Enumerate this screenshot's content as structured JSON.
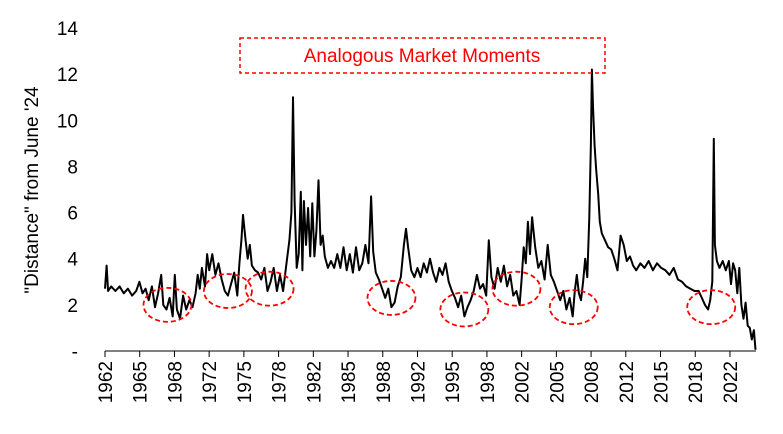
{
  "chart_data": {
    "type": "line",
    "title": "",
    "xlabel": "",
    "ylabel": "\"Distance\" from June '24",
    "ylim": [
      0,
      14
    ],
    "xlim": [
      1962.0,
      2024.5
    ],
    "y_ticks": [
      "-",
      "2",
      "4",
      "6",
      "8",
      "10",
      "12",
      "14"
    ],
    "x_ticks": [
      "1962",
      "1965",
      "1968",
      "1972",
      "1975",
      "1978",
      "1982",
      "1985",
      "1988",
      "1992",
      "1995",
      "1998",
      "2002",
      "2005",
      "2008",
      "2012",
      "2015",
      "2018",
      "2022"
    ],
    "grid": false,
    "line_color": "#000000",
    "annotation_color": "#ff0000",
    "annotation_box": {
      "text": "Analogous Market Moments"
    },
    "highlight_ellipses": [
      {
        "x": 1968.0,
        "y": 2.0
      },
      {
        "x": 1973.8,
        "y": 2.6
      },
      {
        "x": 1977.8,
        "y": 2.7
      },
      {
        "x": 1989.5,
        "y": 2.3
      },
      {
        "x": 1996.5,
        "y": 1.8
      },
      {
        "x": 2001.5,
        "y": 2.7
      },
      {
        "x": 2007.0,
        "y": 1.9
      },
      {
        "x": 2020.2,
        "y": 1.9
      }
    ],
    "series": [
      {
        "points": [
          [
            1962.0,
            2.7
          ],
          [
            1962.15,
            3.7
          ],
          [
            1962.3,
            2.6
          ],
          [
            1962.6,
            2.8
          ],
          [
            1963.0,
            2.6
          ],
          [
            1963.4,
            2.8
          ],
          [
            1963.8,
            2.5
          ],
          [
            1964.2,
            2.7
          ],
          [
            1964.6,
            2.4
          ],
          [
            1965.0,
            2.6
          ],
          [
            1965.3,
            3.0
          ],
          [
            1965.6,
            2.5
          ],
          [
            1965.9,
            2.7
          ],
          [
            1966.2,
            2.2
          ],
          [
            1966.5,
            2.8
          ],
          [
            1966.8,
            1.9
          ],
          [
            1967.1,
            2.5
          ],
          [
            1967.4,
            3.3
          ],
          [
            1967.6,
            2.0
          ],
          [
            1967.9,
            1.8
          ],
          [
            1968.2,
            2.3
          ],
          [
            1968.5,
            1.5
          ],
          [
            1968.7,
            3.3
          ],
          [
            1968.9,
            1.8
          ],
          [
            1969.2,
            1.4
          ],
          [
            1969.5,
            2.4
          ],
          [
            1969.8,
            1.8
          ],
          [
            1970.1,
            2.2
          ],
          [
            1970.4,
            1.9
          ],
          [
            1970.7,
            2.5
          ],
          [
            1970.9,
            3.3
          ],
          [
            1971.1,
            2.7
          ],
          [
            1971.3,
            3.6
          ],
          [
            1971.6,
            2.8
          ],
          [
            1971.8,
            4.2
          ],
          [
            1972.0,
            3.5
          ],
          [
            1972.3,
            4.2
          ],
          [
            1972.6,
            3.3
          ],
          [
            1972.9,
            3.8
          ],
          [
            1973.2,
            3.1
          ],
          [
            1973.5,
            2.6
          ],
          [
            1973.8,
            2.4
          ],
          [
            1974.1,
            2.9
          ],
          [
            1974.4,
            3.4
          ],
          [
            1974.7,
            2.4
          ],
          [
            1974.9,
            3.8
          ],
          [
            1975.1,
            4.8
          ],
          [
            1975.25,
            5.9
          ],
          [
            1975.5,
            4.8
          ],
          [
            1975.7,
            4.0
          ],
          [
            1975.9,
            4.6
          ],
          [
            1976.1,
            3.7
          ],
          [
            1976.4,
            3.5
          ],
          [
            1976.7,
            3.4
          ],
          [
            1977.0,
            3.1
          ],
          [
            1977.3,
            3.6
          ],
          [
            1977.6,
            2.6
          ],
          [
            1977.9,
            3.0
          ],
          [
            1978.2,
            3.6
          ],
          [
            1978.5,
            2.6
          ],
          [
            1978.8,
            3.3
          ],
          [
            1979.1,
            2.6
          ],
          [
            1979.4,
            3.7
          ],
          [
            1979.7,
            4.8
          ],
          [
            1979.9,
            6.0
          ],
          [
            1980.05,
            11.0
          ],
          [
            1980.2,
            6.5
          ],
          [
            1980.4,
            3.6
          ],
          [
            1980.6,
            4.2
          ],
          [
            1980.8,
            6.9
          ],
          [
            1980.95,
            3.5
          ],
          [
            1981.1,
            6.5
          ],
          [
            1981.3,
            4.6
          ],
          [
            1981.5,
            6.2
          ],
          [
            1981.7,
            4.1
          ],
          [
            1981.9,
            6.4
          ],
          [
            1982.1,
            4.1
          ],
          [
            1982.3,
            5.2
          ],
          [
            1982.5,
            7.4
          ],
          [
            1982.7,
            4.6
          ],
          [
            1982.9,
            5.0
          ],
          [
            1983.1,
            4.1
          ],
          [
            1983.4,
            3.6
          ],
          [
            1983.7,
            3.9
          ],
          [
            1984.0,
            3.6
          ],
          [
            1984.3,
            4.2
          ],
          [
            1984.6,
            3.6
          ],
          [
            1984.9,
            4.5
          ],
          [
            1985.2,
            3.5
          ],
          [
            1985.5,
            4.2
          ],
          [
            1985.8,
            3.4
          ],
          [
            1986.1,
            4.5
          ],
          [
            1986.4,
            3.5
          ],
          [
            1986.7,
            3.8
          ],
          [
            1987.0,
            4.6
          ],
          [
            1987.3,
            3.8
          ],
          [
            1987.55,
            6.7
          ],
          [
            1987.75,
            4.3
          ],
          [
            1988.0,
            3.4
          ],
          [
            1988.3,
            3.1
          ],
          [
            1988.6,
            2.7
          ],
          [
            1988.9,
            2.3
          ],
          [
            1989.2,
            2.7
          ],
          [
            1989.5,
            1.9
          ],
          [
            1989.8,
            2.1
          ],
          [
            1990.1,
            2.8
          ],
          [
            1990.4,
            3.2
          ],
          [
            1990.7,
            4.6
          ],
          [
            1990.9,
            5.3
          ],
          [
            1991.1,
            4.5
          ],
          [
            1991.4,
            3.5
          ],
          [
            1991.7,
            3.2
          ],
          [
            1992.0,
            3.6
          ],
          [
            1992.3,
            3.2
          ],
          [
            1992.6,
            3.8
          ],
          [
            1992.9,
            3.4
          ],
          [
            1993.2,
            4.0
          ],
          [
            1993.5,
            3.4
          ],
          [
            1993.8,
            3.0
          ],
          [
            1994.1,
            3.6
          ],
          [
            1994.4,
            3.3
          ],
          [
            1994.7,
            3.8
          ],
          [
            1995.0,
            3.0
          ],
          [
            1995.3,
            2.6
          ],
          [
            1995.6,
            2.3
          ],
          [
            1995.9,
            1.9
          ],
          [
            1996.2,
            2.4
          ],
          [
            1996.5,
            1.5
          ],
          [
            1996.8,
            1.9
          ],
          [
            1997.1,
            2.2
          ],
          [
            1997.4,
            2.6
          ],
          [
            1997.7,
            3.3
          ],
          [
            1998.0,
            2.7
          ],
          [
            1998.3,
            2.9
          ],
          [
            1998.6,
            2.4
          ],
          [
            1998.85,
            4.8
          ],
          [
            1999.1,
            3.2
          ],
          [
            1999.4,
            2.7
          ],
          [
            1999.7,
            3.6
          ],
          [
            2000.0,
            3.0
          ],
          [
            2000.3,
            3.7
          ],
          [
            2000.6,
            2.8
          ],
          [
            2000.9,
            3.3
          ],
          [
            2001.2,
            2.4
          ],
          [
            2001.5,
            2.6
          ],
          [
            2001.8,
            2.0
          ],
          [
            2002.0,
            3.1
          ],
          [
            2002.2,
            4.5
          ],
          [
            2002.4,
            3.8
          ],
          [
            2002.6,
            5.6
          ],
          [
            2002.8,
            4.2
          ],
          [
            2003.0,
            5.8
          ],
          [
            2003.3,
            4.5
          ],
          [
            2003.6,
            3.6
          ],
          [
            2003.9,
            3.9
          ],
          [
            2004.2,
            3.1
          ],
          [
            2004.5,
            4.6
          ],
          [
            2004.8,
            3.3
          ],
          [
            2005.1,
            3.0
          ],
          [
            2005.4,
            2.6
          ],
          [
            2005.7,
            2.2
          ],
          [
            2006.0,
            2.6
          ],
          [
            2006.3,
            1.8
          ],
          [
            2006.6,
            2.3
          ],
          [
            2006.9,
            1.5
          ],
          [
            2007.1,
            2.6
          ],
          [
            2007.3,
            3.3
          ],
          [
            2007.5,
            2.5
          ],
          [
            2007.7,
            2.2
          ],
          [
            2007.9,
            3.0
          ],
          [
            2008.1,
            4.0
          ],
          [
            2008.3,
            3.2
          ],
          [
            2008.5,
            5.8
          ],
          [
            2008.65,
            9.0
          ],
          [
            2008.75,
            12.2
          ],
          [
            2008.85,
            10.6
          ],
          [
            2009.0,
            8.9
          ],
          [
            2009.15,
            7.9
          ],
          [
            2009.35,
            6.8
          ],
          [
            2009.5,
            5.6
          ],
          [
            2009.7,
            5.1
          ],
          [
            2010.0,
            4.8
          ],
          [
            2010.3,
            4.5
          ],
          [
            2010.6,
            4.4
          ],
          [
            2010.9,
            4.0
          ],
          [
            2011.2,
            3.5
          ],
          [
            2011.5,
            5.0
          ],
          [
            2011.8,
            4.6
          ],
          [
            2012.1,
            3.9
          ],
          [
            2012.4,
            4.1
          ],
          [
            2012.7,
            3.7
          ],
          [
            2013.0,
            3.5
          ],
          [
            2013.4,
            3.8
          ],
          [
            2013.8,
            3.6
          ],
          [
            2014.2,
            3.9
          ],
          [
            2014.6,
            3.5
          ],
          [
            2015.0,
            3.8
          ],
          [
            2015.4,
            3.6
          ],
          [
            2015.8,
            3.5
          ],
          [
            2016.2,
            3.3
          ],
          [
            2016.6,
            3.6
          ],
          [
            2017.0,
            3.1
          ],
          [
            2017.4,
            3.0
          ],
          [
            2017.8,
            2.8
          ],
          [
            2018.2,
            2.7
          ],
          [
            2018.6,
            2.6
          ],
          [
            2019.0,
            2.6
          ],
          [
            2019.3,
            2.3
          ],
          [
            2019.6,
            2.0
          ],
          [
            2019.9,
            1.8
          ],
          [
            2020.1,
            2.2
          ],
          [
            2020.3,
            3.0
          ],
          [
            2020.45,
            9.2
          ],
          [
            2020.55,
            4.6
          ],
          [
            2020.75,
            3.9
          ],
          [
            2021.0,
            3.6
          ],
          [
            2021.3,
            3.9
          ],
          [
            2021.6,
            3.5
          ],
          [
            2021.9,
            3.9
          ],
          [
            2022.1,
            2.9
          ],
          [
            2022.3,
            3.8
          ],
          [
            2022.5,
            3.5
          ],
          [
            2022.7,
            2.5
          ],
          [
            2022.9,
            3.6
          ],
          [
            2023.1,
            2.0
          ],
          [
            2023.3,
            1.4
          ],
          [
            2023.5,
            2.1
          ],
          [
            2023.7,
            1.1
          ],
          [
            2023.9,
            1.0
          ],
          [
            2024.1,
            0.5
          ],
          [
            2024.3,
            0.9
          ],
          [
            2024.45,
            0.05
          ]
        ]
      }
    ]
  }
}
